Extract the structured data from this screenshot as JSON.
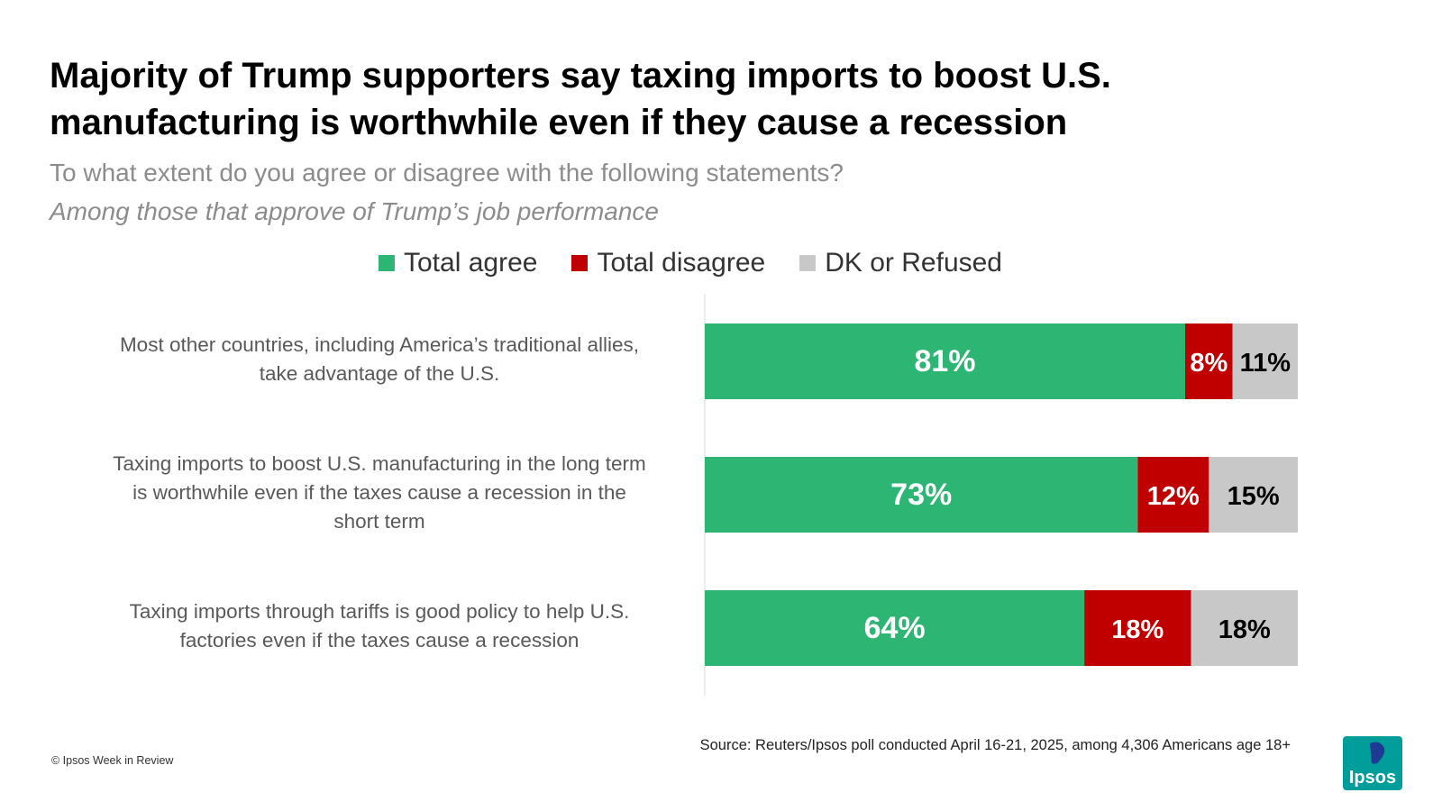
{
  "title_lines": [
    "Majority of Trump supporters say taxing imports to boost U.S.",
    "manufacturing is worthwhile even if they cause a recession"
  ],
  "subtitle": "To what extent do you agree or disagree with the following statements?",
  "subtitle2": "Among those that approve of Trump’s job performance",
  "legend": [
    {
      "label": "Total agree",
      "color": "#2db573"
    },
    {
      "label": "Total disagree",
      "color": "#c00000"
    },
    {
      "label": "DK or Refused",
      "color": "#c8c8c8"
    }
  ],
  "chart_data": {
    "type": "bar",
    "orientation": "horizontal",
    "stacked": true,
    "categories": [
      [
        "Most other countries, including America’s traditional allies,",
        "take advantage of the U.S."
      ],
      [
        "Taxing imports to boost U.S. manufacturing in the long term",
        "is worthwhile even if the taxes cause a recession in the",
        "short term"
      ],
      [
        "Taxing imports through tariffs is good policy to help U.S.",
        "factories even if  the taxes cause a recession"
      ]
    ],
    "series": [
      {
        "name": "Total agree",
        "color": "#2db573",
        "label_color": "#ffffff",
        "values": [
          81,
          73,
          64
        ],
        "labels": [
          "81%",
          "73%",
          "64%"
        ]
      },
      {
        "name": "Total disagree",
        "color": "#c00000",
        "label_color": "#ffffff",
        "values": [
          8,
          12,
          18
        ],
        "labels": [
          "8%",
          "12%",
          "18%"
        ]
      },
      {
        "name": "DK or Refused",
        "color": "#c8c8c8",
        "label_color": "#000000",
        "values": [
          11,
          15,
          18
        ],
        "labels": [
          "11%",
          "15%",
          "18%"
        ]
      }
    ],
    "xlim": [
      0,
      100
    ],
    "grid": false,
    "legend_position": "top"
  },
  "source": "Source: Reuters/Ipsos poll conducted April 16-21, 2025, among  4,306 Americans age 18+",
  "copyright": "© Ipsos Week in Review",
  "logo": {
    "text": "Ipsos",
    "color": "#009d9a",
    "accent": "#1f3a93"
  }
}
